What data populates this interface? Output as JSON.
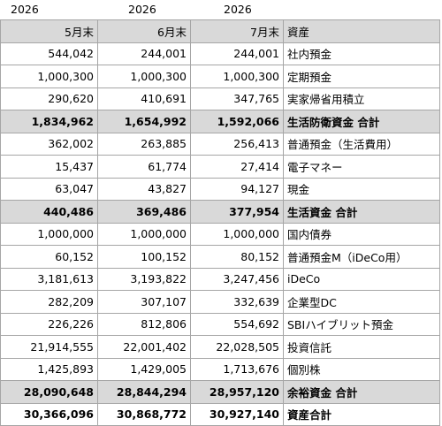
{
  "years": [
    "2026",
    "2026",
    "2026"
  ],
  "table": {
    "header": [
      "5月末",
      "6月末",
      "7月末",
      "資産"
    ],
    "rows": [
      {
        "cells": [
          "544,042",
          "244,001",
          "244,001",
          "社内預金"
        ]
      },
      {
        "cells": [
          "1,000,300",
          "1,000,300",
          "1,000,300",
          "定期預金"
        ]
      },
      {
        "cells": [
          "290,620",
          "410,691",
          "347,765",
          "実家帰省用積立"
        ]
      },
      {
        "cells": [
          "1,834,962",
          "1,654,992",
          "1,592,066",
          "生活防衛資金 合計"
        ],
        "highlight": true,
        "bold": true
      },
      {
        "cells": [
          "362,002",
          "263,885",
          "256,413",
          "普通預金（生活費用）"
        ]
      },
      {
        "cells": [
          "15,437",
          "61,774",
          "27,414",
          "電子マネー"
        ]
      },
      {
        "cells": [
          "63,047",
          "43,827",
          "94,127",
          "現金"
        ]
      },
      {
        "cells": [
          "440,486",
          "369,486",
          "377,954",
          "生活資金 合計"
        ],
        "highlight": true,
        "bold": true
      },
      {
        "cells": [
          "1,000,000",
          "1,000,000",
          "1,000,000",
          "国内債券"
        ]
      },
      {
        "cells": [
          "60,152",
          "100,152",
          "80,152",
          "普通預金M（iDeCo用）"
        ]
      },
      {
        "cells": [
          "3,181,613",
          "3,193,822",
          "3,247,456",
          "iDeCo"
        ]
      },
      {
        "cells": [
          "282,209",
          "307,107",
          "332,639",
          "企業型DC"
        ]
      },
      {
        "cells": [
          "226,226",
          "812,806",
          "554,692",
          "SBIハイブリット預金"
        ]
      },
      {
        "cells": [
          "21,914,555",
          "22,001,402",
          "22,028,505",
          "投資信託"
        ]
      },
      {
        "cells": [
          "1,425,893",
          "1,429,005",
          "1,713,676",
          "個別株"
        ]
      },
      {
        "cells": [
          "28,090,648",
          "28,844,294",
          "28,957,120",
          "余裕資金 合計"
        ],
        "highlight": true,
        "bold": true
      },
      {
        "cells": [
          "30,366,096",
          "30,868,772",
          "30,927,140",
          "資産合計"
        ],
        "bold": true
      }
    ]
  }
}
